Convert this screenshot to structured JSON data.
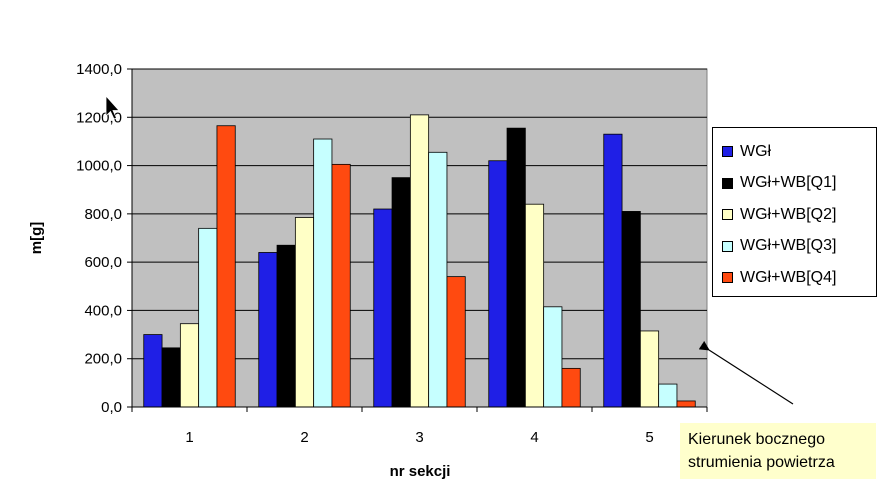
{
  "chart_data": {
    "type": "bar",
    "title": "",
    "xlabel": "nr sekcji",
    "ylabel": "m[g]",
    "ylim": [
      0,
      1400
    ],
    "yticks": [
      "0,0",
      "200,0",
      "400,0",
      "600,0",
      "800,0",
      "1000,0",
      "1200,0",
      "1400,0"
    ],
    "ytick_values": [
      0,
      200,
      400,
      600,
      800,
      1000,
      1200,
      1400
    ],
    "categories": [
      "1",
      "2",
      "3",
      "4",
      "5"
    ],
    "grid": true,
    "legend_position": "right",
    "plot_background": "#c0c0c0",
    "series": [
      {
        "name": "WGł",
        "color": "#1f1fe6",
        "values": [
          300,
          640,
          820,
          1020,
          1130
        ]
      },
      {
        "name": "WGł+WB[Q1]",
        "color": "#000000",
        "values": [
          245,
          670,
          950,
          1155,
          810
        ]
      },
      {
        "name": "WGł+WB[Q2]",
        "color": "#ffffc6",
        "values": [
          345,
          785,
          1210,
          840,
          315
        ]
      },
      {
        "name": "WGł+WB[Q3]",
        "color": "#c6ffff",
        "values": [
          740,
          1110,
          1055,
          415,
          95
        ]
      },
      {
        "name": "WGł+WB[Q4]",
        "color": "#ff4a10",
        "values": [
          1165,
          1005,
          540,
          160,
          25
        ]
      }
    ],
    "annotation": {
      "lines": [
        "Kierunek bocznego",
        "strumienia powietrza"
      ],
      "background": "#ffffcc"
    }
  }
}
